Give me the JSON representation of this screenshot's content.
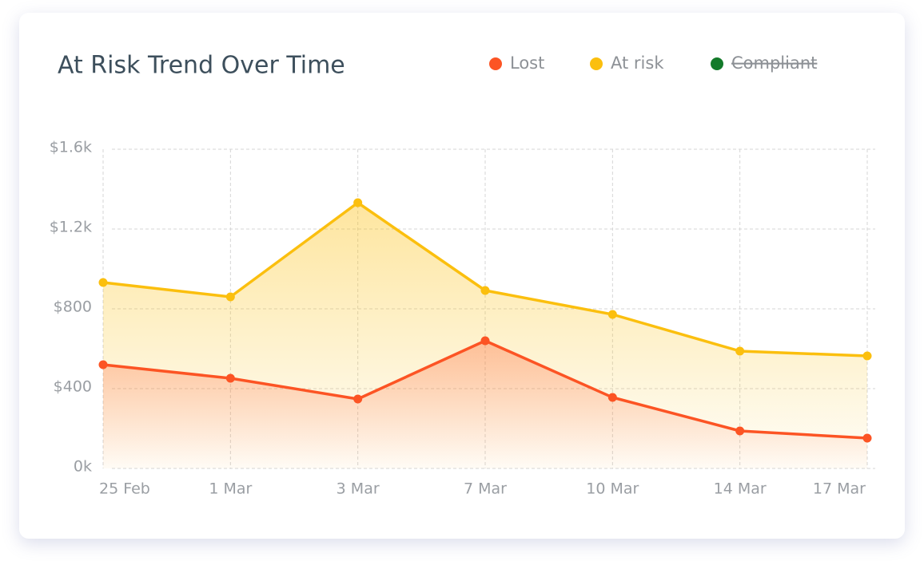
{
  "chart_data": {
    "type": "area-line",
    "title": "At Risk Trend Over Time",
    "categories": [
      "25 Feb",
      "1 Mar",
      "3 Mar",
      "7 Mar",
      "10 Mar",
      "14 Mar",
      "17 Mar"
    ],
    "series": [
      {
        "name": "Lost",
        "color": "#fc5424",
        "values": [
          520,
          452,
          348,
          640,
          356,
          188,
          152
        ]
      },
      {
        "name": "At risk",
        "color": "#fbbf0e",
        "values": [
          932,
          860,
          1332,
          892,
          772,
          588,
          564
        ]
      },
      {
        "name": "Compliant",
        "color": "#137a2a",
        "hidden": true,
        "values": [
          null,
          null,
          null,
          null,
          null,
          null,
          null
        ]
      }
    ],
    "ylim": [
      0,
      1600
    ],
    "yticks": [
      {
        "value": 0,
        "label": "0k"
      },
      {
        "value": 400,
        "label": "$400"
      },
      {
        "value": 800,
        "label": "$800"
      },
      {
        "value": 1200,
        "label": "$1.2k"
      },
      {
        "value": 1600,
        "label": "$1.6k"
      }
    ],
    "grid": true,
    "legend": "top-right"
  }
}
